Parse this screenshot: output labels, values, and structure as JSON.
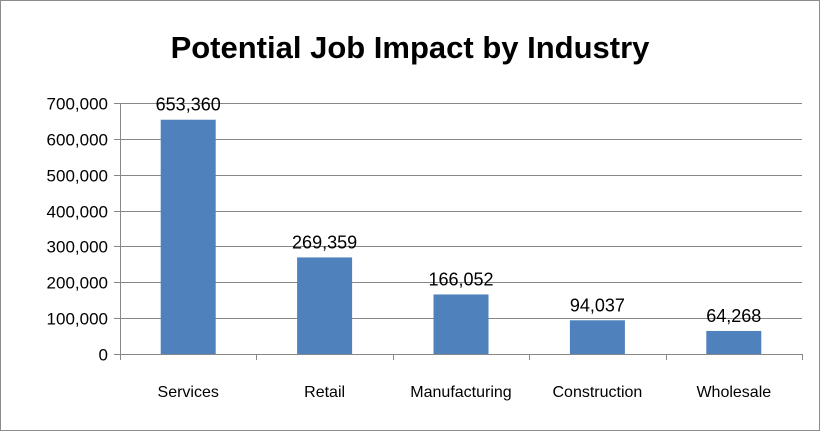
{
  "chart_data": {
    "type": "bar",
    "title": "Potential Job Impact by Industry",
    "xlabel": "",
    "ylabel": "",
    "categories": [
      "Services",
      "Retail",
      "Manufacturing",
      "Construction",
      "Wholesale"
    ],
    "values": [
      653360,
      269359,
      166052,
      94037,
      64268
    ],
    "data_labels": [
      "653,360",
      "269,359",
      "166,052",
      "94,037",
      "64,268"
    ],
    "ylim": [
      0,
      700000
    ],
    "yticks": [
      0,
      100000,
      200000,
      300000,
      400000,
      500000,
      600000,
      700000
    ],
    "ytick_labels": [
      "0",
      "100,000",
      "200,000",
      "300,000",
      "400,000",
      "500,000",
      "600,000",
      "700,000"
    ],
    "grid": true,
    "legend": "none",
    "bar_color": "#4f81bd",
    "grid_color": "#878787"
  }
}
